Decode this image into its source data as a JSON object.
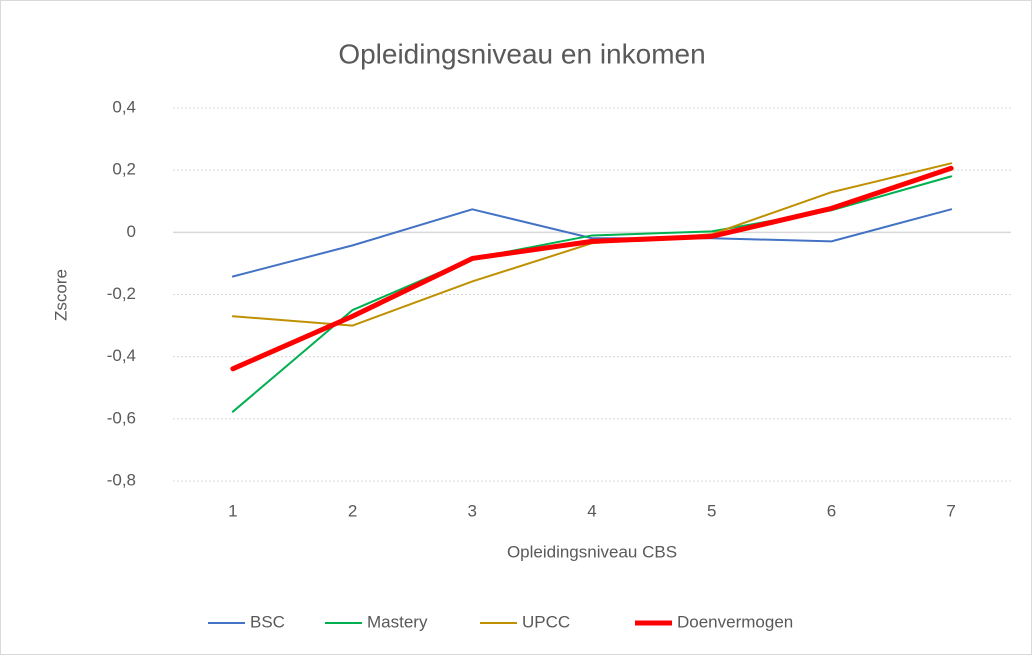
{
  "chart_data": {
    "type": "line",
    "title": "Opleidingsniveau en inkomen",
    "x_label": "Opleidingsniveau CBS",
    "y_label": "Zscore",
    "categories": [
      "1",
      "2",
      "3",
      "4",
      "5",
      "6",
      "7"
    ],
    "series": [
      {
        "name": "BSC",
        "color": "#4472c4",
        "linewidth": 2,
        "values": [
          -0.142,
          -0.042,
          0.074,
          -0.019,
          -0.019,
          -0.029,
          0.074
        ]
      },
      {
        "name": "Mastery",
        "color": "#00b050",
        "linewidth": 2,
        "values": [
          -0.577,
          -0.25,
          -0.084,
          -0.01,
          0.003,
          0.071,
          0.18
        ]
      },
      {
        "name": "UPCC",
        "color": "#bf9000",
        "linewidth": 2,
        "values": [
          -0.27,
          -0.3,
          -0.158,
          -0.035,
          -0.006,
          0.129,
          0.222
        ]
      },
      {
        "name": "Doenvermogen",
        "color": "#ff0000",
        "linewidth": 5,
        "values": [
          -0.439,
          -0.27,
          -0.084,
          -0.029,
          -0.013,
          0.077,
          0.206
        ]
      }
    ],
    "ylim": [
      -0.8,
      0.4
    ],
    "yticks": [
      {
        "value": -0.8,
        "label": "-0,8"
      },
      {
        "value": -0.6,
        "label": "-0,6"
      },
      {
        "value": -0.4,
        "label": "-0,4"
      },
      {
        "value": -0.2,
        "label": "-0,2"
      },
      0,
      {
        "value": 0.2,
        "label": "0,2"
      },
      {
        "value": 0.4,
        "label": "0,4"
      }
    ],
    "grid": true,
    "legend": "bottom"
  }
}
